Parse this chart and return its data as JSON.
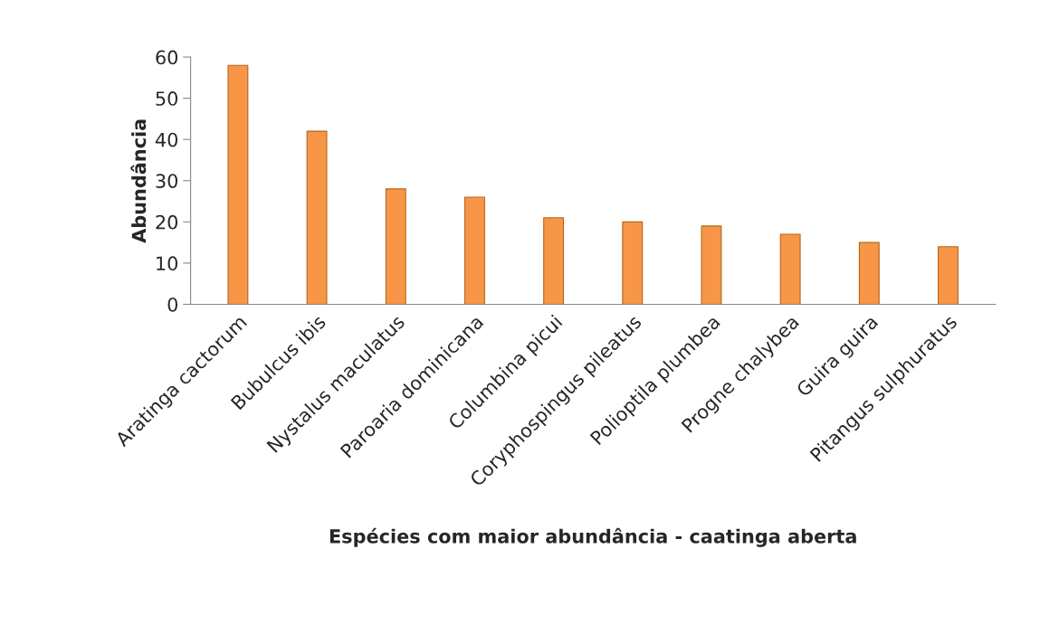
{
  "chart_data": {
    "type": "bar",
    "xlabel": "Espécies com maior abundância - caatinga aberta",
    "ylabel": "Abundância",
    "categories": [
      "Aratinga cactorum",
      "Bubulcus ibis",
      "Nystalus maculatus",
      "Paroaria dominicana",
      "Columbina picui",
      "Coryphospingus pileatus",
      "Polioptila plumbea",
      "Progne chalybea",
      "Guira guira",
      "Pitangus sulphuratus"
    ],
    "values": [
      58,
      42,
      28,
      26,
      21,
      20,
      19,
      17,
      15,
      14
    ],
    "color": "#f79646",
    "ylim": [
      0,
      60
    ],
    "yticks": [
      0,
      10,
      20,
      30,
      40,
      50,
      60
    ],
    "grid": false
  }
}
